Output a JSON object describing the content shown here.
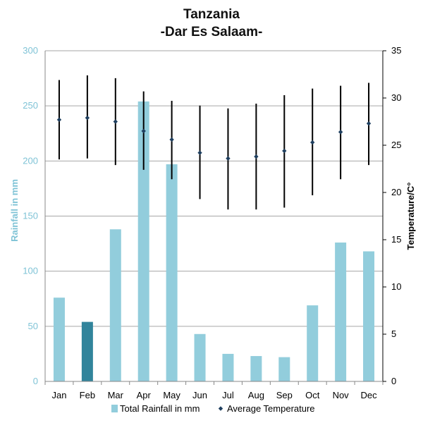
{
  "title": "Tanzania",
  "subtitle": "-Dar Es Salaam-",
  "colors": {
    "bar": "#92cddc",
    "bar_highlight": "#31849b",
    "left_axis_text": "#7fc3d6",
    "temperature_marker": "#1f3f5f",
    "error_bar": "#000000",
    "grid": "#a6a6a6",
    "axis_line": "#888888"
  },
  "chart_data": {
    "type": "bar",
    "categories": [
      "Jan",
      "Feb",
      "Mar",
      "Apr",
      "May",
      "Jun",
      "Jul",
      "Aug",
      "Sep",
      "Oct",
      "Nov",
      "Dec"
    ],
    "highlighted_category": "Feb",
    "series": [
      {
        "name": "Total Rainfall in mm",
        "type": "bar",
        "axis": "left",
        "values": [
          76,
          54,
          138,
          254,
          197,
          43,
          25,
          23,
          22,
          69,
          126,
          118
        ]
      },
      {
        "name": "Average Temperature",
        "type": "scatter",
        "axis": "right",
        "values": [
          27.7,
          27.9,
          27.5,
          26.5,
          25.6,
          24.2,
          23.6,
          23.8,
          24.4,
          25.3,
          26.4,
          27.3
        ],
        "high": [
          31.9,
          32.4,
          32.1,
          30.7,
          29.7,
          29.2,
          28.9,
          29.4,
          30.3,
          31.0,
          31.3,
          31.6
        ],
        "low": [
          23.5,
          23.6,
          22.9,
          22.4,
          21.4,
          19.3,
          18.2,
          18.2,
          18.4,
          19.7,
          21.4,
          22.9
        ]
      }
    ],
    "ylabel": "Rainfall in mm",
    "ylabel_right": "Temperature/C°",
    "ylim": [
      0,
      300
    ],
    "yticks": [
      0,
      50,
      100,
      150,
      200,
      250,
      300
    ],
    "ylim_right": [
      0,
      35
    ],
    "yticks_right": [
      0,
      5,
      10,
      15,
      20,
      25,
      30,
      35
    ],
    "grid": true,
    "legend_position": "bottom"
  }
}
